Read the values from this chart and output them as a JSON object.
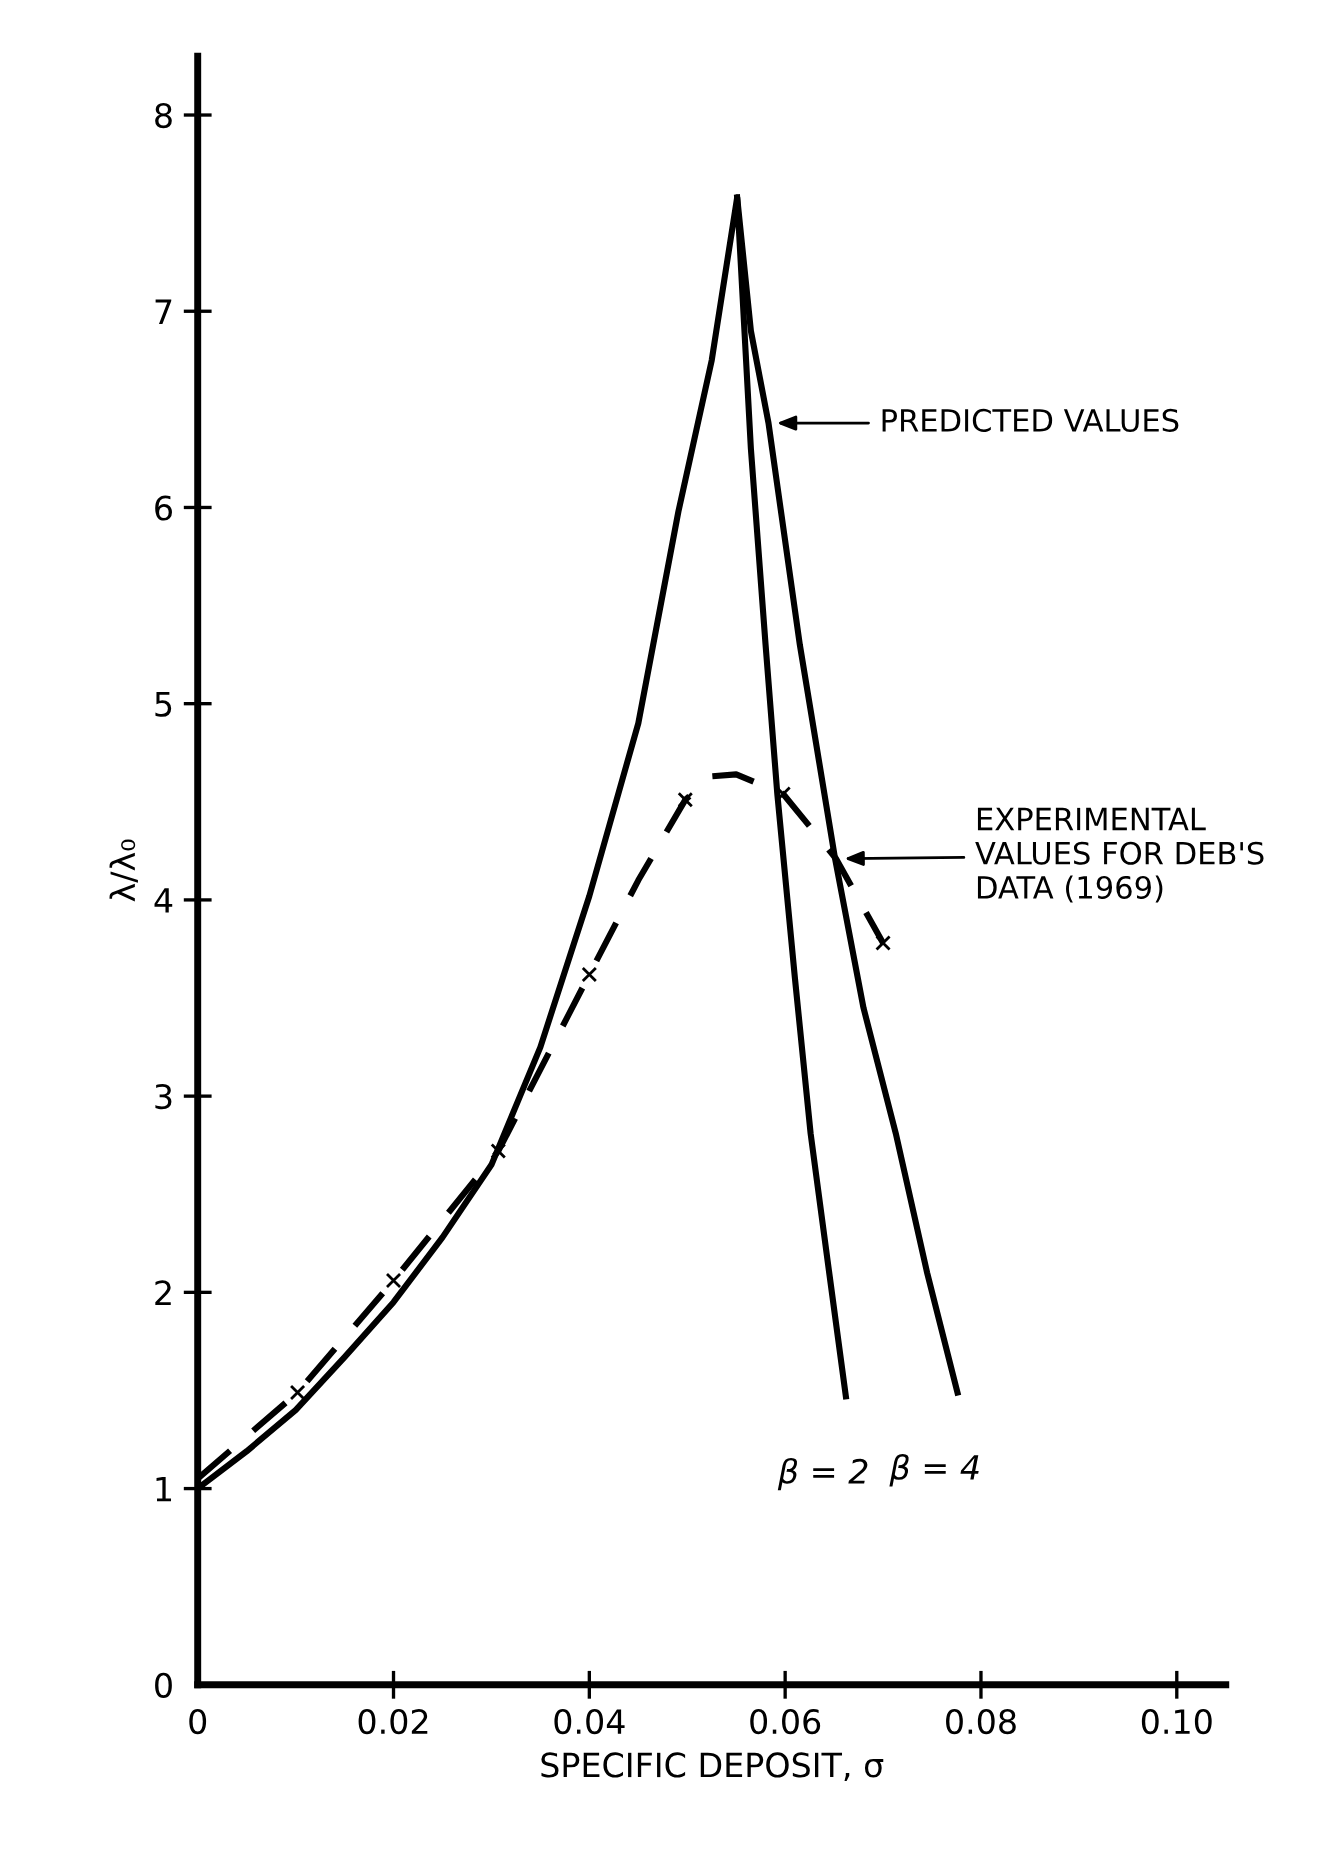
{
  "chart_data": {
    "type": "line",
    "xlabel": "SPECIFIC DEPOSIT, σ",
    "ylabel": "λ/λ₀",
    "xlim": [
      0,
      0.105
    ],
    "ylim": [
      0,
      8.3
    ],
    "xticks": [
      0,
      0.02,
      0.04,
      0.06,
      0.08,
      {
        "value": 0.1,
        "label": "0.10"
      }
    ],
    "yticks": [
      0,
      1,
      2,
      3,
      4,
      5,
      6,
      7,
      8
    ],
    "grid": false,
    "legend": false,
    "series": [
      {
        "color": "#000000",
        "line_style": "solid",
        "marker": "none",
        "x": [
          0,
          0.005,
          0.01,
          0.015,
          0.02,
          0.025,
          0.03,
          0.035,
          0.04,
          0.045,
          0.0491,
          0.0525,
          0.0551,
          0.0565,
          0.058,
          0.0592,
          0.061,
          0.0626,
          0.0645,
          0.0662
        ],
        "values": [
          1.0,
          1.19,
          1.4,
          1.67,
          1.95,
          2.28,
          2.65,
          3.25,
          4.02,
          4.9,
          5.98,
          6.75,
          7.58,
          6.3,
          5.3,
          4.54,
          3.6,
          2.81,
          2.1,
          1.47
        ]
      },
      {
        "color": "#000000",
        "line_style": "solid",
        "marker": "none",
        "x": [
          0.0551,
          0.0565,
          0.0583,
          0.0615,
          0.0651,
          0.068,
          0.0713,
          0.0745,
          0.0776
        ],
        "values": [
          7.58,
          6.9,
          6.43,
          5.3,
          4.21,
          3.45,
          2.81,
          2.1,
          1.49
        ]
      },
      {
        "color": "#000000",
        "line_style": "dashed",
        "marker": "none",
        "x": [
          0,
          0.0102,
          0.02,
          0.0307,
          0.04,
          0.045,
          0.0498,
          0.0525,
          0.055,
          0.0598,
          0.0652,
          0.07
        ],
        "values": [
          1.05,
          1.49,
          2.06,
          2.72,
          3.62,
          4.1,
          4.51,
          4.63,
          4.64,
          4.54,
          4.21,
          3.78
        ]
      },
      {
        "type": "scatter",
        "color": "#000000",
        "marker": "cross",
        "x": [
          0.0102,
          0.02,
          0.0307,
          0.04,
          0.0498,
          0.0598,
          0.07
        ],
        "values": [
          1.49,
          2.06,
          2.72,
          3.62,
          4.51,
          4.54,
          3.78
        ]
      }
    ],
    "annotations": [
      "PREDICTED VALUES",
      "EXPERIMENTAL\nVALUES FOR DEB'S\nDATA (1969)",
      "β = 2",
      "β = 4"
    ]
  }
}
